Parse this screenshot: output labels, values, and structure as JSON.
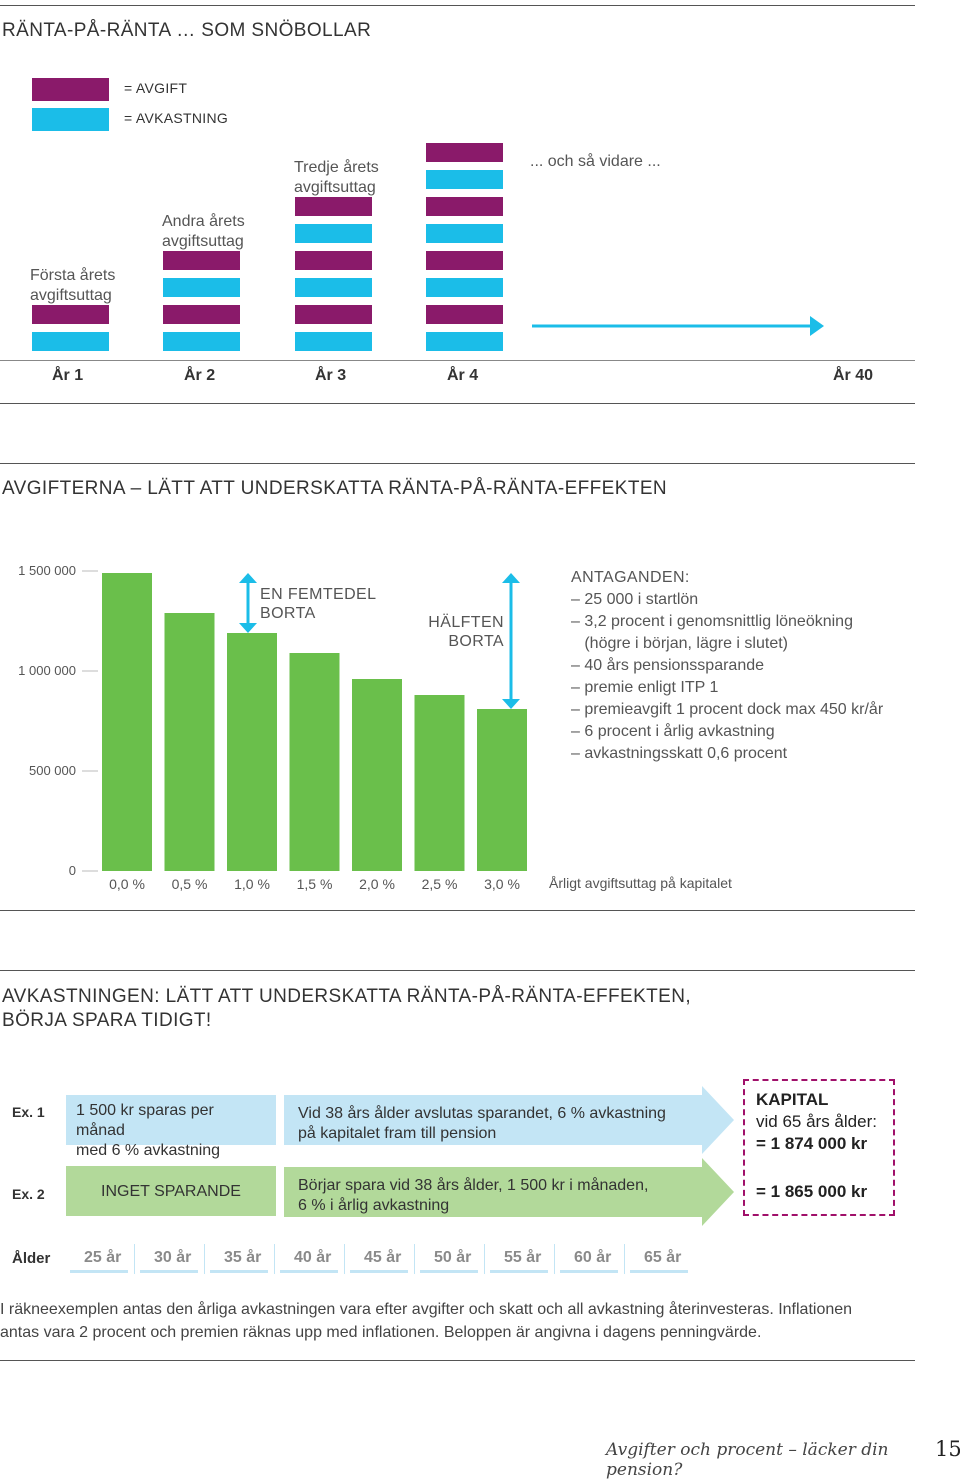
{
  "colors": {
    "fee": "#8a1a6a",
    "return": "#1bbde8",
    "bar": "#6abf4b",
    "arrow": "#1bbde8",
    "light_blue": "#c3e5f5",
    "light_green": "#b2d99a",
    "dashed": "#a0106a"
  },
  "section1": {
    "title": "RÄNTA-PÅ-RÄNTA … SOM SNÖBOLLAR",
    "legend": {
      "fee": "= AVGIFT",
      "return": "= AVKASTNING"
    },
    "captions": [
      "Första årets avgiftsuttag",
      "Andra årets avgiftsuttag",
      "Tredje årets avgiftsuttag"
    ],
    "etc": "... och så vidare ...",
    "years": [
      "År 1",
      "År 2",
      "År 3",
      "År 4",
      "År 40"
    ],
    "stack_counts": [
      1,
      2,
      3,
      4
    ]
  },
  "section2": {
    "title": "AVGIFTERNA – LÄTT ATT UNDERSKATTA RÄNTA-PÅ-RÄNTA-EFFEKTEN",
    "annotation_fifth": [
      "EN FEMTEDEL",
      "BORTA"
    ],
    "annotation_half": [
      "HÄLFTEN",
      "BORTA"
    ],
    "assumptions_title": "ANTAGANDEN:",
    "assumptions": [
      "– 25 000 i startlön",
      "– 3,2 procent i genomsnittlig löneökning",
      "   (högre i början, lägre i slutet)",
      "– 40 års pensionssparande",
      "– premie enligt ITP 1",
      "– premieavgift 1 procent dock max 450 kr/år",
      "– 6 procent i årlig avkastning",
      "– avkastningsskatt 0,6 procent"
    ]
  },
  "chart_data": {
    "type": "bar",
    "categories": [
      "0,0 %",
      "0,5 %",
      "1,0 %",
      "1,5 %",
      "2,0 %",
      "2,5 %",
      "3,0 %"
    ],
    "values": [
      1490000,
      1290000,
      1190000,
      1090000,
      960000,
      880000,
      810000
    ],
    "xlabel": "Årligt avgiftsuttag på kapitalet",
    "ylabel": "",
    "yticks": [
      "0",
      "500 000",
      "1 000 000",
      "1 500 000"
    ],
    "ylim": [
      0,
      1500000
    ]
  },
  "section3": {
    "title_line1": "AVKASTNINGEN: LÄTT ATT UNDERSKATTA RÄNTA-PÅ-RÄNTA-EFFEKTEN,",
    "title_line2": "BÖRJA SPARA TIDIGT!",
    "ex1": {
      "label": "Ex. 1",
      "box1": [
        "1 500 kr sparas per månad",
        "med 6 % avkastning"
      ],
      "box2": [
        "Vid 38 års ålder avslutas sparandet, 6 % avkastning",
        "på kapitalet fram till pension"
      ]
    },
    "ex2": {
      "label": "Ex. 2",
      "box1": "INGET SPARANDE",
      "box2": [
        "Börjar spara vid 38 års ålder, 1 500 kr i månaden,",
        "6 % i årlig avkastning"
      ]
    },
    "result": {
      "title": "KAPITAL",
      "subtitle": "vid 65 års ålder:",
      "ex1_value": "= 1 874 000 kr",
      "ex2_value": "= 1 865 000 kr"
    },
    "age_label": "Ålder",
    "ages": [
      "25 år",
      "30 år",
      "35 år",
      "40 år",
      "45 år",
      "50 år",
      "55 år",
      "60 år",
      "65 år"
    ]
  },
  "footnote": [
    "I räkneexemplen antas den årliga avkastningen vara efter avgifter och skatt och all avkastning återinvesteras. Inflationen",
    "antas vara 2 procent och premien räknas upp med inflationen. Beloppen är angivna i dagens penningvärde."
  ],
  "page": {
    "running_title": "Avgifter och procent – läcker din pension?",
    "number": "15"
  }
}
